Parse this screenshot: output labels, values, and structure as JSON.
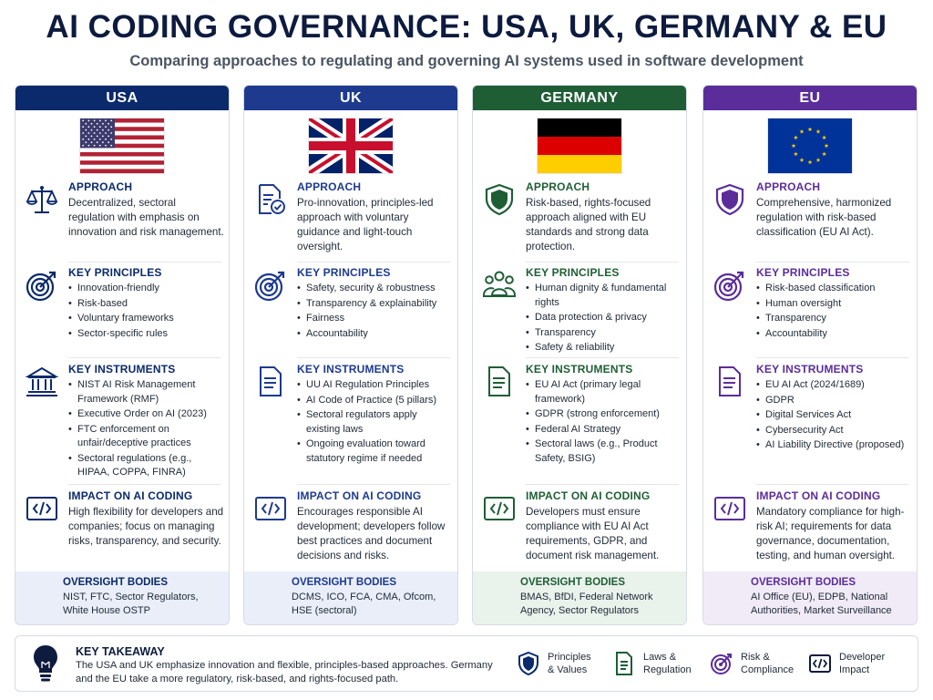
{
  "title": "AI CODING GOVERNANCE: USA, UK, GERMANY & EU",
  "subtitle": "Comparing approaches to regulating and governing AI systems used in software development",
  "colors": {
    "usa": "#0b2a6b",
    "uk": "#1d3a8f",
    "germany": "#1f5e35",
    "eu": "#5b2d9a",
    "navy": "#0d1b3e"
  },
  "columns": [
    {
      "header": "USA",
      "flag": "usa-flag",
      "approach": {
        "title": "APPROACH",
        "icon": "balance-scale-icon",
        "text": "Decentralized, sectoral regulation with emphasis on innovation and risk management."
      },
      "principles": {
        "title": "KEY PRINCIPLES",
        "icon": "target-icon",
        "items": [
          "Innovation-friendly",
          "Risk-based",
          "Voluntary frameworks",
          "Sector-specific rules"
        ]
      },
      "instruments": {
        "title": "KEY INSTRUMENTS",
        "icon": "government-building-icon",
        "items": [
          "NIST AI Risk Management Framework (RMF)",
          "Executive Order on AI (2023)",
          "FTC enforcement on unfair/deceptive practices",
          "Sectoral regulations (e.g., HIPAA, COPPA, FINRA)"
        ]
      },
      "impact": {
        "title": "IMPACT ON AI CODING",
        "icon": "code-icon",
        "text": "High flexibility for developers and companies; focus on managing risks, transparency, and security."
      },
      "oversight": {
        "title": "OVERSIGHT BODIES",
        "text": "NIST, FTC, Sector Regulators, White House OSTP"
      }
    },
    {
      "header": "UK",
      "flag": "uk-flag",
      "approach": {
        "title": "APPROACH",
        "icon": "document-check-icon",
        "text": "Pro-innovation, principles-led approach with voluntary guidance and light-touch oversight."
      },
      "principles": {
        "title": "KEY PRINCIPLES",
        "icon": "target-icon",
        "items": [
          "Safety, security & robustness",
          "Transparency & explainability",
          "Fairness",
          "Accountability"
        ]
      },
      "instruments": {
        "title": "KEY INSTRUMENTS",
        "icon": "document-icon",
        "items": [
          "UU AI Regulation Principles",
          "AI Code of Practice (5 pillars)",
          "Sectoral regulators apply existing laws",
          "Ongoing evaluation toward statutory regime if needed"
        ]
      },
      "impact": {
        "title": "IMPACT ON AI CODING",
        "icon": "code-icon",
        "text": "Encourages responsible AI development; developers follow best practices and document decisions and risks."
      },
      "oversight": {
        "title": "OVERSIGHT BODIES",
        "text": "DCMS, ICO, FCA, CMA, Ofcom, HSE (sectoral)"
      }
    },
    {
      "header": "GERMANY",
      "flag": "germany-flag",
      "approach": {
        "title": "APPROACH",
        "icon": "shield-icon",
        "text": "Risk-based, rights-focused approach aligned with EU standards and strong data protection."
      },
      "principles": {
        "title": "KEY PRINCIPLES",
        "icon": "people-icon",
        "items": [
          "Human dignity & fundamental rights",
          "Data protection & privacy",
          "Transparency",
          "Safety & reliability"
        ]
      },
      "instruments": {
        "title": "KEY INSTRUMENTS",
        "icon": "document-icon",
        "items": [
          "EU AI Act (primary legal framework)",
          "GDPR (strong enforcement)",
          "Federal AI Strategy",
          "Sectoral laws (e.g., Product Safety, BSIG)"
        ]
      },
      "impact": {
        "title": "IMPACT ON AI CODING",
        "icon": "code-icon",
        "text": "Developers must ensure compliance with EU AI Act requirements, GDPR, and document risk management."
      },
      "oversight": {
        "title": "OVERSIGHT BODIES",
        "text": "BMAS, BfDI, Federal Network Agency, Sector Regulators"
      }
    },
    {
      "header": "EU",
      "flag": "eu-flag",
      "approach": {
        "title": "APPROACH",
        "icon": "shield-icon",
        "text": "Comprehensive, harmonized regulation with risk-based classification (EU AI Act)."
      },
      "principles": {
        "title": "KEY PRINCIPLES",
        "icon": "target-icon",
        "items": [
          "Risk-based classification",
          "Human oversight",
          "Transparency",
          "Accountability"
        ]
      },
      "instruments": {
        "title": "KEY INSTRUMENTS",
        "icon": "document-icon",
        "items": [
          "EU AI Act (2024/1689)",
          "GDPR",
          "Digital Services Act",
          "Cybersecurity Act",
          "AI Liability Directive (proposed)"
        ]
      },
      "impact": {
        "title": "IMPACT ON AI CODING",
        "icon": "code-icon",
        "text": "Mandatory compliance for high-risk AI; requirements for data governance, documentation, testing, and human oversight."
      },
      "oversight": {
        "title": "OVERSIGHT BODIES",
        "text": "AI Office (EU), EDPB, National Authorities, Market Surveillance"
      }
    }
  ],
  "takeaway": {
    "title": "KEY TAKEAWAY",
    "icon": "lightbulb-icon",
    "text": "The USA and UK emphasize innovation and flexible, principles-based approaches. Germany and the EU take a more regulatory, risk-based, and rights-focused path."
  },
  "legend": [
    {
      "label": "Principles\n& Values",
      "icon": "shield-icon"
    },
    {
      "label": "Laws &\nRegulation",
      "icon": "document-icon"
    },
    {
      "label": "Risk &\nCompliance",
      "icon": "target-icon"
    },
    {
      "label": "Developer\nImpact",
      "icon": "code-icon"
    }
  ]
}
